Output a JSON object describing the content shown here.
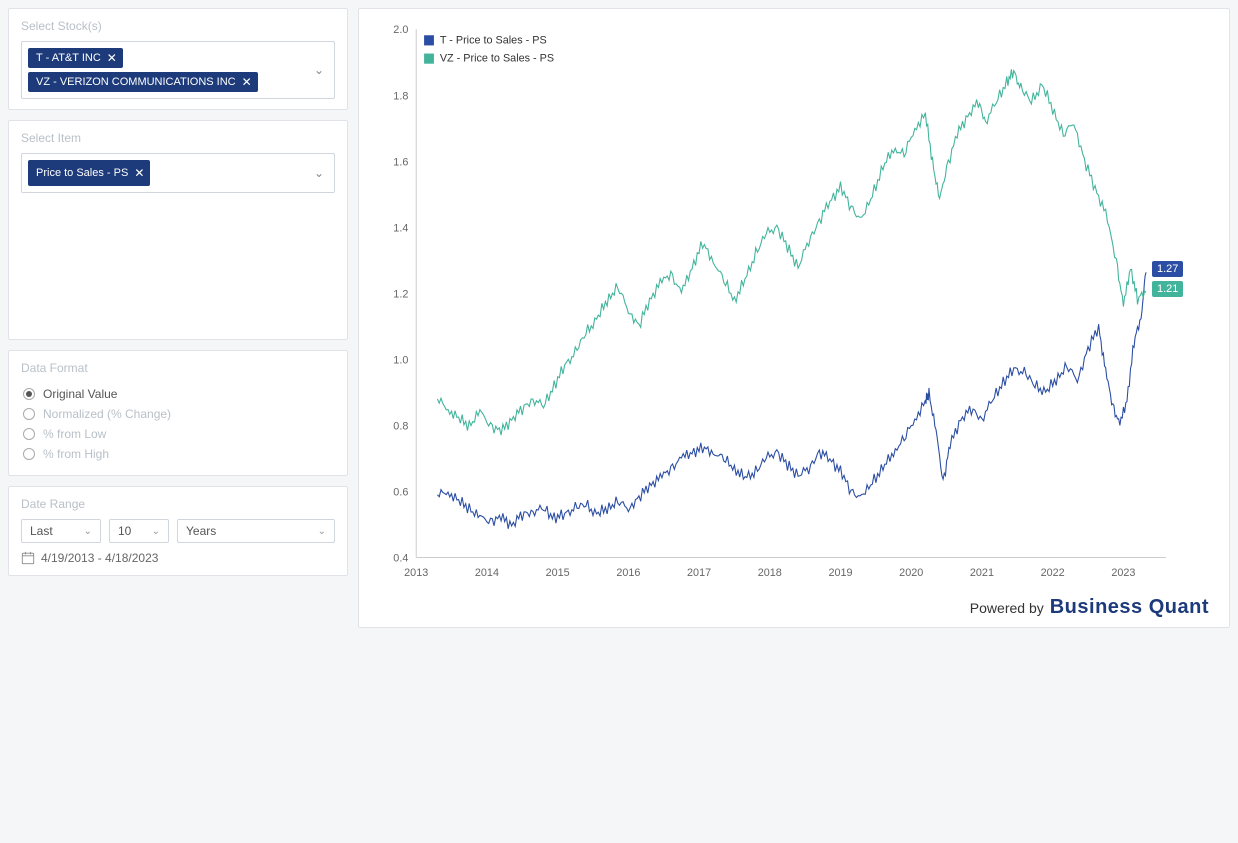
{
  "sidebar": {
    "select_stocks": {
      "title": "Select Stock(s)",
      "chips": [
        {
          "label": "T - AT&T INC"
        },
        {
          "label": "VZ - VERIZON COMMUNICATIONS INC"
        }
      ]
    },
    "select_item": {
      "title": "Select Item",
      "chips": [
        {
          "label": "Price to Sales - PS"
        }
      ]
    },
    "data_format": {
      "title": "Data Format",
      "options": [
        {
          "label": "Original Value",
          "selected": true
        },
        {
          "label": "Normalized (% Change)",
          "selected": false
        },
        {
          "label": "% from Low",
          "selected": false
        },
        {
          "label": "% from High",
          "selected": false
        }
      ]
    },
    "date_range": {
      "title": "Date Range",
      "last_label": "Last",
      "value": "10",
      "unit": "Years",
      "range_text": "4/19/2013 - 4/18/2023"
    }
  },
  "chart": {
    "type": "line",
    "legend": [
      {
        "label": "T - Price to Sales - PS",
        "color": "#2b4da3"
      },
      {
        "label": "VZ - Price to Sales - PS",
        "color": "#42b49b"
      }
    ],
    "x_axis": {
      "years": [
        2013,
        2014,
        2015,
        2016,
        2017,
        2018,
        2019,
        2020,
        2021,
        2022,
        2023
      ],
      "domain": [
        2013,
        2023.6
      ],
      "label_fontsize": 11,
      "label_color": "#666666"
    },
    "y_axis": {
      "ticks": [
        0.4,
        0.6,
        0.8,
        1.0,
        1.2,
        1.4,
        1.6,
        1.8,
        2.0
      ],
      "domain": [
        0.4,
        2.0
      ],
      "label_fontsize": 11,
      "label_color": "#666666"
    },
    "grid": {
      "visible": false,
      "axis_color": "#cccccc"
    },
    "background_color": "#ffffff",
    "line_width": 1.1,
    "series": [
      {
        "name": "T",
        "color": "#2b4da3",
        "end_label": "1.27",
        "points": [
          [
            2013.3,
            0.59
          ],
          [
            2013.45,
            0.6
          ],
          [
            2013.6,
            0.57
          ],
          [
            2013.75,
            0.55
          ],
          [
            2013.9,
            0.52
          ],
          [
            2014.05,
            0.51
          ],
          [
            2014.2,
            0.52
          ],
          [
            2014.35,
            0.5
          ],
          [
            2014.5,
            0.53
          ],
          [
            2014.65,
            0.54
          ],
          [
            2014.8,
            0.55
          ],
          [
            2014.95,
            0.52
          ],
          [
            2015.1,
            0.53
          ],
          [
            2015.25,
            0.55
          ],
          [
            2015.4,
            0.56
          ],
          [
            2015.55,
            0.53
          ],
          [
            2015.7,
            0.55
          ],
          [
            2015.85,
            0.57
          ],
          [
            2016.0,
            0.55
          ],
          [
            2016.15,
            0.58
          ],
          [
            2016.3,
            0.62
          ],
          [
            2016.45,
            0.64
          ],
          [
            2016.6,
            0.67
          ],
          [
            2016.75,
            0.7
          ],
          [
            2016.9,
            0.72
          ],
          [
            2017.05,
            0.73
          ],
          [
            2017.2,
            0.72
          ],
          [
            2017.35,
            0.7
          ],
          [
            2017.5,
            0.67
          ],
          [
            2017.65,
            0.64
          ],
          [
            2017.8,
            0.66
          ],
          [
            2017.95,
            0.7
          ],
          [
            2018.1,
            0.72
          ],
          [
            2018.25,
            0.68
          ],
          [
            2018.4,
            0.65
          ],
          [
            2018.55,
            0.67
          ],
          [
            2018.7,
            0.72
          ],
          [
            2018.85,
            0.7
          ],
          [
            2019.0,
            0.66
          ],
          [
            2019.15,
            0.6
          ],
          [
            2019.3,
            0.58
          ],
          [
            2019.45,
            0.63
          ],
          [
            2019.6,
            0.67
          ],
          [
            2019.75,
            0.72
          ],
          [
            2019.9,
            0.76
          ],
          [
            2020.05,
            0.82
          ],
          [
            2020.2,
            0.87
          ],
          [
            2020.25,
            0.9
          ],
          [
            2020.35,
            0.78
          ],
          [
            2020.45,
            0.63
          ],
          [
            2020.55,
            0.74
          ],
          [
            2020.7,
            0.82
          ],
          [
            2020.85,
            0.85
          ],
          [
            2021.0,
            0.82
          ],
          [
            2021.15,
            0.88
          ],
          [
            2021.3,
            0.93
          ],
          [
            2021.45,
            0.97
          ],
          [
            2021.6,
            0.96
          ],
          [
            2021.75,
            0.92
          ],
          [
            2021.9,
            0.9
          ],
          [
            2022.05,
            0.94
          ],
          [
            2022.2,
            0.98
          ],
          [
            2022.35,
            0.94
          ],
          [
            2022.5,
            1.03
          ],
          [
            2022.65,
            1.1
          ],
          [
            2022.75,
            0.96
          ],
          [
            2022.85,
            0.86
          ],
          [
            2022.95,
            0.8
          ],
          [
            2023.05,
            0.88
          ],
          [
            2023.15,
            1.05
          ],
          [
            2023.25,
            1.13
          ],
          [
            2023.32,
            1.27
          ]
        ]
      },
      {
        "name": "VZ",
        "color": "#42b49b",
        "end_label": "1.21",
        "points": [
          [
            2013.3,
            0.88
          ],
          [
            2013.45,
            0.85
          ],
          [
            2013.6,
            0.82
          ],
          [
            2013.75,
            0.8
          ],
          [
            2013.9,
            0.84
          ],
          [
            2014.05,
            0.8
          ],
          [
            2014.2,
            0.78
          ],
          [
            2014.35,
            0.82
          ],
          [
            2014.5,
            0.85
          ],
          [
            2014.65,
            0.88
          ],
          [
            2014.8,
            0.86
          ],
          [
            2014.95,
            0.92
          ],
          [
            2015.1,
            0.98
          ],
          [
            2015.25,
            1.02
          ],
          [
            2015.4,
            1.08
          ],
          [
            2015.55,
            1.12
          ],
          [
            2015.7,
            1.18
          ],
          [
            2015.85,
            1.22
          ],
          [
            2016.0,
            1.15
          ],
          [
            2016.15,
            1.1
          ],
          [
            2016.3,
            1.18
          ],
          [
            2016.45,
            1.23
          ],
          [
            2016.6,
            1.26
          ],
          [
            2016.75,
            1.2
          ],
          [
            2016.9,
            1.28
          ],
          [
            2017.05,
            1.35
          ],
          [
            2017.2,
            1.3
          ],
          [
            2017.35,
            1.24
          ],
          [
            2017.5,
            1.18
          ],
          [
            2017.65,
            1.24
          ],
          [
            2017.8,
            1.32
          ],
          [
            2017.95,
            1.38
          ],
          [
            2018.1,
            1.4
          ],
          [
            2018.25,
            1.34
          ],
          [
            2018.4,
            1.28
          ],
          [
            2018.55,
            1.36
          ],
          [
            2018.7,
            1.42
          ],
          [
            2018.85,
            1.48
          ],
          [
            2019.0,
            1.52
          ],
          [
            2019.15,
            1.46
          ],
          [
            2019.3,
            1.42
          ],
          [
            2019.45,
            1.5
          ],
          [
            2019.6,
            1.58
          ],
          [
            2019.75,
            1.64
          ],
          [
            2019.9,
            1.62
          ],
          [
            2020.05,
            1.7
          ],
          [
            2020.2,
            1.74
          ],
          [
            2020.3,
            1.6
          ],
          [
            2020.4,
            1.48
          ],
          [
            2020.5,
            1.58
          ],
          [
            2020.65,
            1.68
          ],
          [
            2020.8,
            1.74
          ],
          [
            2020.95,
            1.78
          ],
          [
            2021.05,
            1.72
          ],
          [
            2021.2,
            1.78
          ],
          [
            2021.35,
            1.84
          ],
          [
            2021.45,
            1.87
          ],
          [
            2021.55,
            1.82
          ],
          [
            2021.7,
            1.78
          ],
          [
            2021.85,
            1.83
          ],
          [
            2022.0,
            1.76
          ],
          [
            2022.15,
            1.68
          ],
          [
            2022.3,
            1.72
          ],
          [
            2022.45,
            1.6
          ],
          [
            2022.6,
            1.52
          ],
          [
            2022.75,
            1.44
          ],
          [
            2022.9,
            1.3
          ],
          [
            2023.0,
            1.16
          ],
          [
            2023.1,
            1.28
          ],
          [
            2023.2,
            1.18
          ],
          [
            2023.32,
            1.21
          ]
        ]
      }
    ],
    "powered_by": {
      "prefix": "Powered by",
      "brand": "Business Quant"
    }
  }
}
